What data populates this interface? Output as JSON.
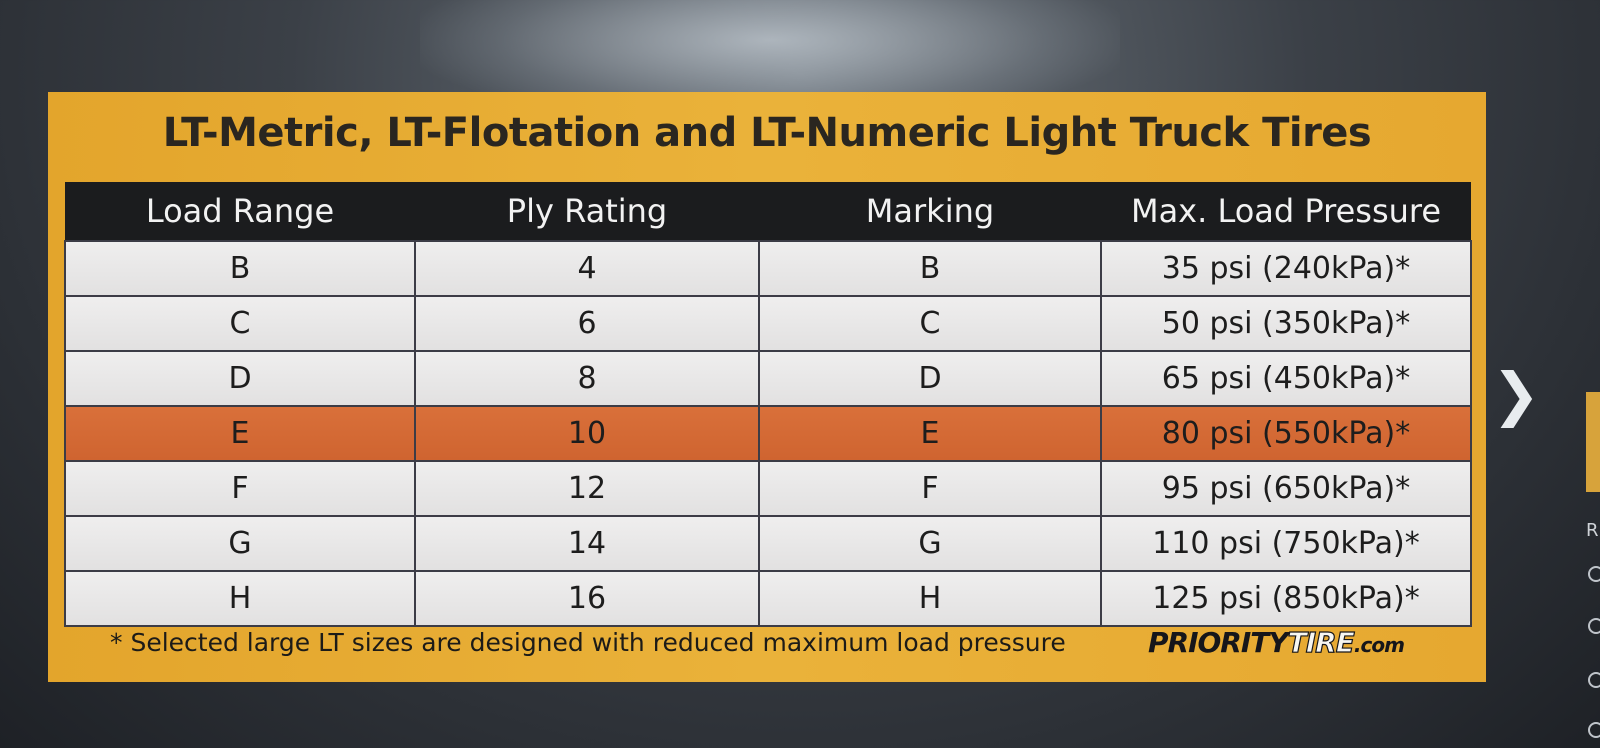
{
  "chart_data": {
    "type": "table",
    "title": "LT-Metric, LT-Flotation and LT-Numeric Light Truck Tires",
    "columns": [
      "Load Range",
      "Ply Rating",
      "Marking",
      "Max. Load Pressure"
    ],
    "rows": [
      [
        "B",
        "4",
        "B",
        "35 psi (240kPa)*"
      ],
      [
        "C",
        "6",
        "C",
        "50 psi (350kPa)*"
      ],
      [
        "D",
        "8",
        "D",
        "65 psi (450kPa)*"
      ],
      [
        "E",
        "10",
        "E",
        "80 psi (550kPa)*"
      ],
      [
        "F",
        "12",
        "F",
        "95 psi (650kPa)*"
      ],
      [
        "G",
        "14",
        "G",
        "110 psi (750kPa)*"
      ],
      [
        "H",
        "16",
        "H",
        "125 psi (850kPa)*"
      ]
    ],
    "highlighted_row_index": 3
  },
  "footnote": "* Selected large LT sizes are designed with reduced maximum load pressure",
  "brand": {
    "part1": "PRIORITY",
    "part2": "TIRE",
    "part3": ".com"
  },
  "nav": {
    "next_glyph": "❯",
    "side_letter": "R"
  },
  "colors": {
    "card_background": "#e9ae37",
    "header_background": "#1b1c1e",
    "highlight_row": "#d4693a",
    "cell_background": "#e9e8e8"
  }
}
